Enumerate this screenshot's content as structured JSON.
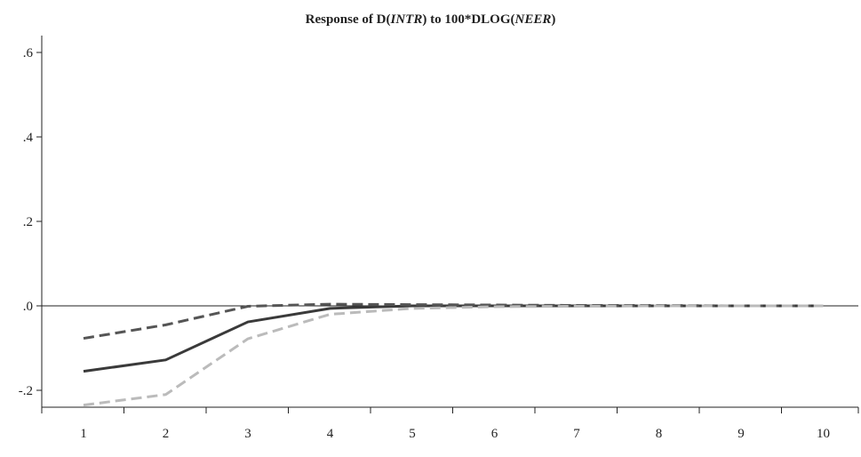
{
  "chart_data": {
    "type": "line",
    "title": {
      "prefix": "Response of D(",
      "var1": "INTR",
      "middle": ") to 100*DLOG(",
      "var2": "NEER",
      "suffix": ")"
    },
    "xlabel": "",
    "ylabel": "",
    "x": [
      1,
      2,
      3,
      4,
      5,
      6,
      7,
      8,
      9,
      10
    ],
    "x_tick_labels": [
      "1",
      "2",
      "3",
      "4",
      "5",
      "6",
      "7",
      "8",
      "9",
      "10"
    ],
    "y_ticks": [
      -0.2,
      0.0,
      0.2,
      0.4,
      0.6
    ],
    "y_tick_labels": [
      "-.2",
      ".0",
      ".2",
      ".4",
      ".6"
    ],
    "ylim": [
      -0.24,
      0.64
    ],
    "grid": false,
    "series": [
      {
        "values": [
          -0.155,
          -0.128,
          -0.038,
          -0.006,
          0.0,
          0.0,
          0.0,
          0.0,
          0.0,
          0.0
        ],
        "color": "#3a3a3a",
        "style": "solid"
      },
      {
        "values": [
          -0.077,
          -0.045,
          -0.001,
          0.004,
          0.003,
          0.002,
          0.001,
          0.001,
          0.0,
          0.0
        ],
        "color": "#555555",
        "style": "dashed"
      },
      {
        "values": [
          -0.235,
          -0.21,
          -0.078,
          -0.02,
          -0.006,
          -0.002,
          -0.001,
          0.0,
          0.0,
          0.0
        ],
        "color": "#bbbbbb",
        "style": "dashed"
      }
    ]
  }
}
